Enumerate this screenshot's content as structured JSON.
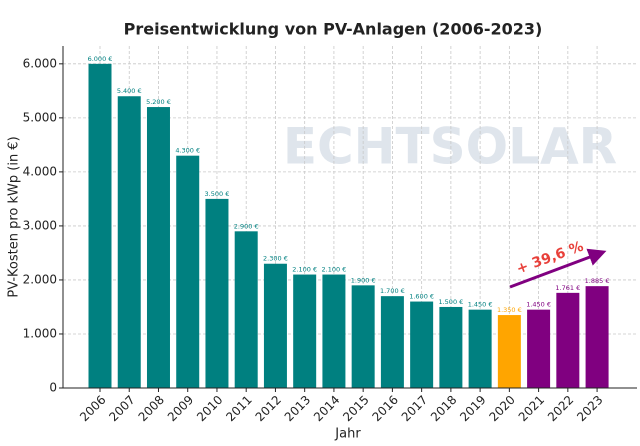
{
  "chart_data": {
    "type": "bar",
    "title": "Preisentwicklung von PV-Anlagen (2006-2023)",
    "x_label": "Jahr",
    "y_label": "PV-Kosten pro kWp (in €)",
    "watermark": "ECHTSOLAR",
    "annotation": "+ 39,6 %",
    "categories": [
      "2006",
      "2007",
      "2008",
      "2009",
      "2010",
      "2011",
      "2012",
      "2013",
      "2014",
      "2015",
      "2016",
      "2017",
      "2018",
      "2019",
      "2020",
      "2021",
      "2022",
      "2023"
    ],
    "values": [
      6000,
      5400,
      5200,
      4300,
      3500,
      2900,
      2300,
      2100,
      2100,
      1900,
      1700,
      1600,
      1500,
      1450,
      1350,
      1450,
      1761,
      1885
    ],
    "value_labels": [
      "6.000 €",
      "5.400 €",
      "5.200 €",
      "4.300 €",
      "3.500 €",
      "2.900 €",
      "2.300 €",
      "2.100 €",
      "2.100 €",
      "1.900 €",
      "1.700 €",
      "1.600 €",
      "1.500 €",
      "1.450 €",
      "1.350 €",
      "1.450 €",
      "1.761 €",
      "1.885 €"
    ],
    "colors": [
      "#008080",
      "#008080",
      "#008080",
      "#008080",
      "#008080",
      "#008080",
      "#008080",
      "#008080",
      "#008080",
      "#008080",
      "#008080",
      "#008080",
      "#008080",
      "#008080",
      "#ffa500",
      "#800080",
      "#800080",
      "#800080"
    ],
    "ylim": [
      0,
      6330
    ],
    "yticks": [
      0,
      {
        "value": 1000,
        "label": "1.000"
      },
      {
        "value": 2000,
        "label": "2.000"
      },
      {
        "value": 3000,
        "label": "3.000"
      },
      {
        "value": 4000,
        "label": "4.000"
      },
      {
        "value": 5000,
        "label": "5.000"
      },
      {
        "value": 6000,
        "label": "6.000"
      }
    ],
    "grid": true
  }
}
